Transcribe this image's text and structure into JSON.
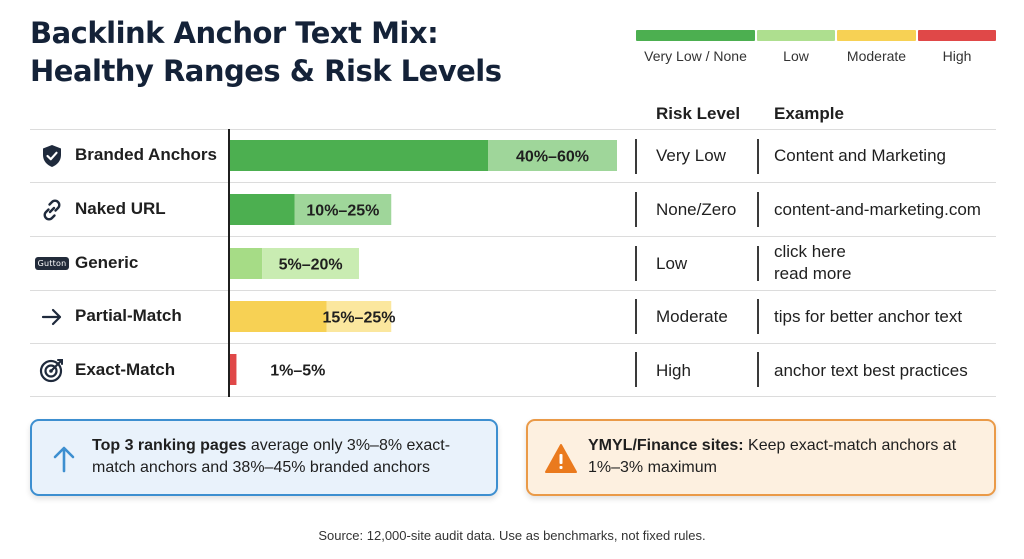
{
  "title_line1": "Backlink Anchor Text Mix:",
  "title_line2": "Healthy Ranges & Risk Levels",
  "legend": [
    {
      "label": "Very Low / None",
      "color": "#4caf50"
    },
    {
      "label": "Low",
      "color": "#aedf8f"
    },
    {
      "label": "Moderate",
      "color": "#f7d154"
    },
    {
      "label": "High",
      "color": "#e04848"
    }
  ],
  "headers": {
    "risk": "Risk Level",
    "example": "Example"
  },
  "chart_data": {
    "type": "bar",
    "orientation": "horizontal",
    "categories": [
      "Branded Anchors",
      "Naked URL",
      "Generic",
      "Partial-Match",
      "Exact-Match"
    ],
    "ranges": [
      {
        "min": 40,
        "max": 60,
        "label": "40%–60%",
        "risk": "Very Low",
        "color_main": "#4caf50",
        "color_range": "#9fd69a"
      },
      {
        "min": 10,
        "max": 25,
        "label": "10%–25%",
        "risk": "None/Zero",
        "color_main": "#4caf50",
        "color_range": "#9fd69a"
      },
      {
        "min": 5,
        "max": 20,
        "label": "5%–20%",
        "risk": "Low",
        "color_main": "#a6dc86",
        "color_range": "#c9ecb2"
      },
      {
        "min": 15,
        "max": 25,
        "label": "15%–25%",
        "risk": "Moderate",
        "color_main": "#f7d154",
        "color_range": "#fbe79e"
      },
      {
        "min": 1,
        "max": 5,
        "label": "1%–5%",
        "risk": "High",
        "color_main": "#e04848",
        "color_range": "#e04848"
      }
    ],
    "xlim": [
      0,
      60
    ]
  },
  "rows": [
    {
      "label": "Branded Anchors",
      "icon": "shield-check-icon",
      "risk": "Very Low",
      "example": [
        "Content and Marketing"
      ]
    },
    {
      "label": "Naked URL",
      "icon": "link-icon",
      "risk": "None/Zero",
      "example": [
        "content-and-marketing.com"
      ]
    },
    {
      "label": "Generic",
      "icon": "button-badge-icon",
      "badge_text": "Gutton",
      "risk": "Low",
      "example": [
        "click here",
        "read more"
      ]
    },
    {
      "label": "Partial-Match",
      "icon": "arrow-right-icon",
      "risk": "Moderate",
      "example": [
        "tips for better anchor text"
      ]
    },
    {
      "label": "Exact-Match",
      "icon": "target-icon",
      "risk": "High",
      "example": [
        "anchor text best practices"
      ]
    }
  ],
  "callouts": {
    "left": {
      "bold": "Top 3 ranking pages",
      "text": " average only 3%–8% exact-match anchors and 38%–45% branded anchors",
      "icon": "arrow-up-icon",
      "color": "#3d8fd0"
    },
    "right": {
      "bold": "YMYL/Finance sites:",
      "text": " Keep exact-match anchors at 1%–3% maximum",
      "icon": "warning-icon",
      "color": "#ea7a1e"
    }
  },
  "source": "Source: 12,000-site audit data. Use as benchmarks, not fixed rules."
}
